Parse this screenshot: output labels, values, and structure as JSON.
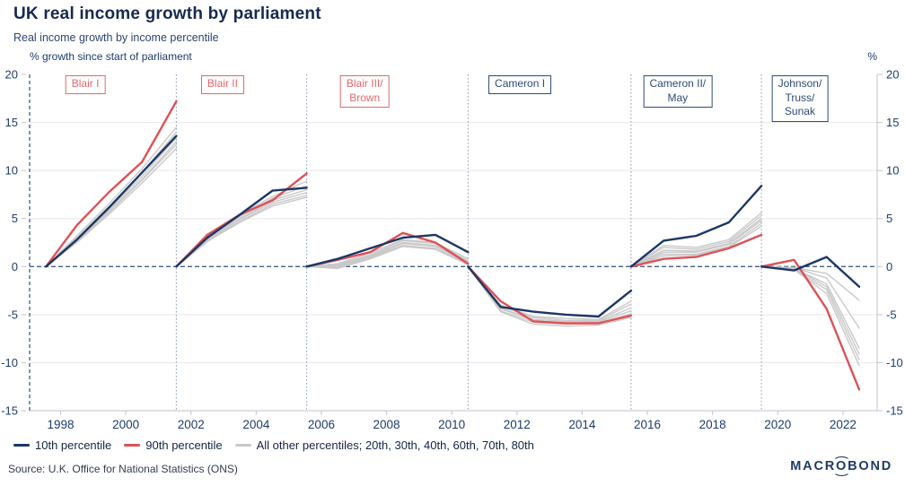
{
  "header": {
    "title": "UK real income growth by parliament",
    "subtitle": "Real income growth by income percentile"
  },
  "axis": {
    "left_unit": "% growth since start of parliament",
    "right_unit": "%"
  },
  "legend": {
    "items": [
      {
        "label": "10th percentile",
        "color": "#1c3765"
      },
      {
        "label": "90th percentile",
        "color": "#dd5257"
      },
      {
        "label": "All other percentiles; 20th, 30th, 40th, 60th, 70th, 80th",
        "color": "#c9c9c9"
      }
    ]
  },
  "footer": {
    "source": "Source: U.K. Office for National Statistics (ONS)",
    "logo_text_before": "MACR",
    "logo_o": "O",
    "logo_text_after": "BOND"
  },
  "colors": {
    "navy_line": "#1c3765",
    "red_line": "#dd5257",
    "gray_line": "#c9c9c9",
    "grid": "#e8e8e8",
    "axis": "#c9cdd6",
    "dashed_navy": "#2f4d7d",
    "separator": "#8796b3",
    "labour_label": "#e0696d",
    "conservative_label": "#2e4a76",
    "tick_text": "#1d3c6e"
  },
  "chart_data": {
    "type": "line",
    "title": "UK real income growth by parliament",
    "ylabel": "% growth since start of parliament",
    "yunit": "%",
    "ylim": [
      -15,
      20
    ],
    "yticks": [
      20,
      15,
      10,
      5,
      0,
      -5,
      -10,
      -15
    ],
    "xlim": [
      1997.05,
      2023.05
    ],
    "xticks": [
      1998,
      2000,
      2002,
      2004,
      2006,
      2008,
      2010,
      2012,
      2014,
      2016,
      2018,
      2020,
      2022
    ],
    "grid": "horizontal",
    "legend_position": "bottom-left",
    "separators": [
      2001.55,
      2005.55,
      2010.5,
      2015.5,
      2019.5
    ],
    "parliament_labels": [
      {
        "lines": [
          "Blair I"
        ],
        "party": "labour",
        "center_year": 1998.76
      },
      {
        "lines": [
          "Blair II"
        ],
        "party": "labour",
        "center_year": 2002.97
      },
      {
        "lines": [
          "Blair III/",
          "Brown"
        ],
        "party": "labour",
        "center_year": 2007.33
      },
      {
        "lines": [
          "Cameron I"
        ],
        "party": "conservative",
        "center_year": 2012.09
      },
      {
        "lines": [
          "Cameron II/",
          "May"
        ],
        "party": "conservative",
        "center_year": 2016.93
      },
      {
        "lines": [
          "Johnson/",
          "Truss/",
          "Sunak"
        ],
        "party": "conservative",
        "center_year": 2020.68
      }
    ],
    "segments": [
      {
        "parliament": "Blair I",
        "years": [
          1997.55,
          1998.5,
          1999.5,
          2000.5,
          2001.55
        ],
        "p10": [
          0,
          2.8,
          6.2,
          9.8,
          13.6
        ],
        "p90": [
          0,
          4.3,
          7.8,
          10.9,
          17.2
        ],
        "others": [
          [
            0,
            2.5,
            5.5,
            8.7,
            12.3
          ],
          [
            0,
            2.6,
            5.7,
            9.0,
            12.7
          ],
          [
            0,
            2.7,
            5.8,
            9.1,
            13.0
          ],
          [
            0,
            2.8,
            6.0,
            9.4,
            13.4
          ],
          [
            0,
            3.0,
            6.3,
            9.8,
            14.0
          ],
          [
            0,
            3.2,
            6.6,
            10.2,
            14.5
          ]
        ]
      },
      {
        "parliament": "Blair II",
        "years": [
          2001.55,
          2002.5,
          2003.5,
          2004.5,
          2005.55
        ],
        "p10": [
          0,
          3.0,
          5.4,
          7.9,
          8.2
        ],
        "p90": [
          0,
          3.3,
          5.4,
          6.9,
          9.7
        ],
        "others": [
          [
            0,
            2.6,
            4.6,
            6.3,
            7.2
          ],
          [
            0,
            2.7,
            4.7,
            6.5,
            7.4
          ],
          [
            0,
            2.8,
            4.9,
            6.7,
            7.7
          ],
          [
            0,
            2.9,
            5.0,
            6.9,
            8.0
          ],
          [
            0,
            3.0,
            5.2,
            7.1,
            8.4
          ],
          [
            0,
            3.1,
            5.4,
            7.3,
            8.9
          ]
        ]
      },
      {
        "parliament": "Blair III/Brown",
        "years": [
          2005.55,
          2006.5,
          2007.5,
          2008.5,
          2009.5,
          2010.5
        ],
        "p10": [
          0,
          0.8,
          1.9,
          3.0,
          3.3,
          1.5
        ],
        "p90": [
          0,
          0.7,
          1.5,
          3.5,
          2.5,
          0.3
        ],
        "others": [
          [
            0,
            -0.2,
            0.8,
            2.1,
            1.8,
            0.2
          ],
          [
            0,
            -0.1,
            0.9,
            2.2,
            1.9,
            0.3
          ],
          [
            0,
            0.0,
            1.0,
            2.4,
            2.1,
            0.4
          ],
          [
            0,
            0.1,
            1.1,
            2.5,
            2.2,
            0.5
          ],
          [
            0,
            0.2,
            1.2,
            2.7,
            2.4,
            0.6
          ],
          [
            0,
            0.3,
            1.4,
            2.8,
            2.5,
            0.8
          ]
        ]
      },
      {
        "parliament": "Cameron I",
        "years": [
          2010.5,
          2011.5,
          2012.5,
          2013.5,
          2014.5,
          2015.5
        ],
        "p10": [
          0,
          -4.2,
          -4.7,
          -5.0,
          -5.2,
          -2.5
        ],
        "p90": [
          0,
          -3.6,
          -5.7,
          -5.9,
          -5.9,
          -5.1
        ],
        "others": [
          [
            0,
            -4.0,
            -5.2,
            -5.4,
            -5.5,
            -3.6
          ],
          [
            0,
            -4.1,
            -5.3,
            -5.6,
            -5.6,
            -3.9
          ],
          [
            0,
            -4.3,
            -5.5,
            -5.7,
            -5.7,
            -4.3
          ],
          [
            0,
            -4.4,
            -5.6,
            -5.9,
            -5.8,
            -4.6
          ],
          [
            0,
            -4.6,
            -5.8,
            -6.0,
            -5.9,
            -4.9
          ],
          [
            0,
            -4.7,
            -6.0,
            -6.2,
            -6.1,
            -5.3
          ]
        ]
      },
      {
        "parliament": "Cameron II/May",
        "years": [
          2015.5,
          2016.5,
          2017.5,
          2018.5,
          2019.5
        ],
        "p10": [
          0,
          2.7,
          3.2,
          4.6,
          8.4
        ],
        "p90": [
          0,
          0.8,
          1.0,
          1.9,
          3.3
        ],
        "others": [
          [
            0,
            1.1,
            1.2,
            2.0,
            4.2
          ],
          [
            0,
            1.3,
            1.3,
            2.1,
            4.5
          ],
          [
            0,
            1.5,
            1.5,
            2.3,
            4.8
          ],
          [
            0,
            1.7,
            1.6,
            2.4,
            5.0
          ],
          [
            0,
            2.0,
            1.8,
            2.6,
            5.3
          ],
          [
            0,
            2.2,
            2.0,
            2.8,
            5.6
          ]
        ]
      },
      {
        "parliament": "Johnson/Truss/Sunak",
        "years": [
          2019.5,
          2020.5,
          2021.5,
          2022.5
        ],
        "p10": [
          0,
          -0.4,
          1.0,
          -2.1
        ],
        "p90": [
          0,
          0.7,
          -4.4,
          -12.8
        ],
        "others": [
          [
            0,
            -0.1,
            -0.7,
            -3.5
          ],
          [
            0,
            -0.1,
            -1.2,
            -6.4
          ],
          [
            0,
            -0.2,
            -1.8,
            -8.5
          ],
          [
            0,
            -0.2,
            -2.1,
            -9.1
          ],
          [
            0,
            -0.3,
            -2.4,
            -9.7
          ],
          [
            0,
            -0.3,
            -2.8,
            -10.3
          ]
        ]
      }
    ]
  }
}
